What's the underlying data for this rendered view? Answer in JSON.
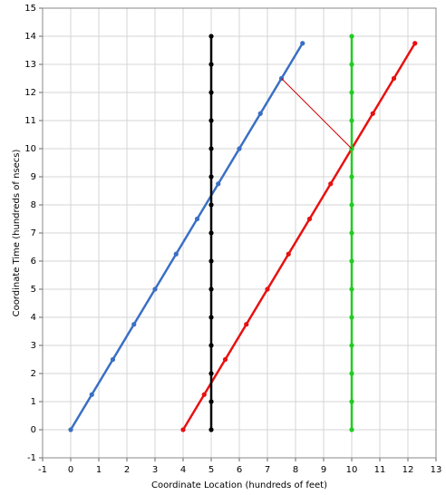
{
  "chart_data": {
    "type": "line",
    "x_label": "Coordinate Location (hundreds of feet)",
    "y_label": "Coordinate Time (hundreds of nsecs)",
    "xlim": [
      -1,
      13
    ],
    "ylim": [
      -1,
      15
    ],
    "xticks": [
      -1,
      0,
      1,
      2,
      3,
      4,
      5,
      6,
      7,
      8,
      9,
      10,
      11,
      12,
      13
    ],
    "yticks": [
      -1,
      0,
      1,
      2,
      3,
      4,
      5,
      6,
      7,
      8,
      9,
      10,
      11,
      12,
      13,
      14,
      15
    ],
    "grid": true,
    "series": [
      {
        "color": "#3a6fc4",
        "line_width": 2.5,
        "markers": true,
        "x": [
          0,
          0.75,
          1.5,
          2.25,
          3,
          3.75,
          4.5,
          5.25,
          6,
          6.75,
          7.5,
          8.25
        ],
        "values": [
          0,
          1.25,
          2.5,
          3.75,
          5,
          6.25,
          7.5,
          8.75,
          10,
          11.25,
          12.5,
          13.75
        ]
      },
      {
        "color": "#e81010",
        "line_width": 2.5,
        "markers": true,
        "x": [
          4,
          4.75,
          5.5,
          6.25,
          7,
          7.75,
          8.5,
          9.25,
          10,
          10.75,
          11.5,
          12.25
        ],
        "values": [
          0,
          1.25,
          2.5,
          3.75,
          5,
          6.25,
          7.5,
          8.75,
          10,
          11.25,
          12.5,
          13.75
        ]
      },
      {
        "color": "#000000",
        "line_width": 2.5,
        "markers": true,
        "x": [
          5,
          5,
          5,
          5,
          5,
          5,
          5,
          5,
          5,
          5,
          5,
          5,
          5,
          5,
          5
        ],
        "values": [
          0,
          1,
          2,
          3,
          4,
          5,
          6,
          7,
          8,
          9,
          10,
          11,
          12,
          13,
          14
        ]
      },
      {
        "color": "#22cc22",
        "line_width": 2.5,
        "markers": true,
        "x": [
          10,
          10,
          10,
          10,
          10,
          10,
          10,
          10,
          10,
          10,
          10,
          10,
          10,
          10,
          10
        ],
        "values": [
          0,
          1,
          2,
          3,
          4,
          5,
          6,
          7,
          8,
          9,
          10,
          11,
          12,
          13,
          14
        ]
      },
      {
        "color": "#cc0000",
        "line_width": 1,
        "markers": false,
        "x": [
          7.5,
          10
        ],
        "values": [
          12.5,
          10
        ]
      }
    ]
  }
}
